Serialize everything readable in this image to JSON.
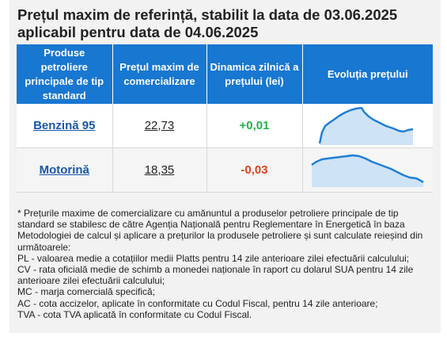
{
  "title": {
    "line1": "Prețul maxim de referință, stabilit la data de 03.06.2025",
    "line2": "aplicabil pentru data de 04.06.2025"
  },
  "table": {
    "headers": [
      "Produse petroliere principale de tip standard",
      "Prețul maxim de comercializare",
      "Dinamica zilnică a prețului (lei)",
      "Evoluția prețului"
    ],
    "rows": [
      {
        "product": "Benzină 95",
        "price": "22,73",
        "change": "+0,01"
      },
      {
        "product": "Motorină",
        "price": "18,35",
        "change": "-0,03"
      }
    ]
  },
  "colors": {
    "header_bg": "#1877d0",
    "positive": "#22b24c",
    "negative": "#e2421b",
    "spark_line": "#1f7fd6",
    "spark_fill": "#cfe3f7"
  },
  "notes": [
    "* Prețurile maxime de comercializare cu amănuntul a produselor petroliere principale de tip standard se stabilesc de către Agenția Națională pentru Reglementare în Energetică în baza Metodologiei de calcul și aplicare a prețurilor la produsele petroliere și sunt calculate reieșind din următoarele:",
    "PL - valoarea medie a cotațiilor medii Platts pentru 14 zile anterioare zilei efectuării calculului;",
    "CV - rata oficială medie de schimb a monedei naționale în raport cu dolarul SUA pentru 14 zile anterioare zilei efectuării calculului;",
    "MC - marja comercială specifică;",
    "AC - cota accizelor, aplicate în conformitate cu Codul Fiscal, pentru 14 zile anterioare;",
    "TVA - cota TVA aplicată în conformitate cu Codul Fiscal."
  ]
}
